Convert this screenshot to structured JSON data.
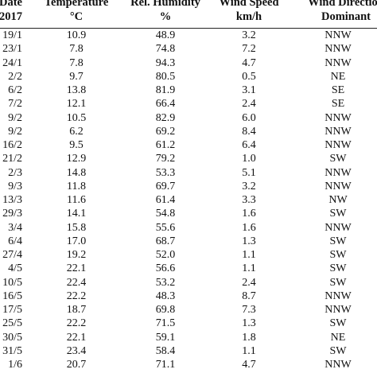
{
  "headers": {
    "date": [
      "Date",
      "2017"
    ],
    "temperature": [
      "Temperature",
      "°C"
    ],
    "humidity": [
      "Rel. Humidity",
      "%"
    ],
    "wind_speed": [
      "Wind Speed",
      "km/h"
    ],
    "wind_direction": [
      "Wind Direction",
      "Dominant"
    ]
  },
  "rows": [
    [
      "19/1",
      "10.9",
      "48.9",
      "3.2",
      "NNW"
    ],
    [
      "23/1",
      "7.8",
      "74.8",
      "7.2",
      "NNW"
    ],
    [
      "24/1",
      "7.8",
      "94.3",
      "4.7",
      "NNW"
    ],
    [
      "2/2",
      "9.7",
      "80.5",
      "0.5",
      "NE"
    ],
    [
      "6/2",
      "13.8",
      "81.9",
      "3.1",
      "SE"
    ],
    [
      "7/2",
      "12.1",
      "66.4",
      "2.4",
      "SE"
    ],
    [
      "9/2",
      "10.5",
      "82.9",
      "6.0",
      "NNW"
    ],
    [
      "9/2",
      "6.2",
      "69.2",
      "8.4",
      "NNW"
    ],
    [
      "16/2",
      "9.5",
      "61.2",
      "6.4",
      "NNW"
    ],
    [
      "21/2",
      "12.9",
      "79.2",
      "1.0",
      "SW"
    ],
    [
      "2/3",
      "14.8",
      "53.3",
      "5.1",
      "NNW"
    ],
    [
      "9/3",
      "11.8",
      "69.7",
      "3.2",
      "NNW"
    ],
    [
      "13/3",
      "11.6",
      "61.4",
      "3.3",
      "NW"
    ],
    [
      "29/3",
      "14.1",
      "54.8",
      "1.6",
      "SW"
    ],
    [
      "3/4",
      "15.8",
      "55.6",
      "1.6",
      "NNW"
    ],
    [
      "6/4",
      "17.0",
      "68.7",
      "1.3",
      "SW"
    ],
    [
      "27/4",
      "19.2",
      "52.0",
      "1.1",
      "SW"
    ],
    [
      "4/5",
      "22.1",
      "56.6",
      "1.1",
      "SW"
    ],
    [
      "10/5",
      "22.4",
      "53.2",
      "2.4",
      "SW"
    ],
    [
      "16/5",
      "22.2",
      "48.3",
      "8.7",
      "NNW"
    ],
    [
      "17/5",
      "18.7",
      "69.8",
      "7.3",
      "NNW"
    ],
    [
      "25/5",
      "22.2",
      "71.5",
      "1.3",
      "SW"
    ],
    [
      "30/5",
      "22.1",
      "59.1",
      "1.8",
      "NE"
    ],
    [
      "31/5",
      "23.4",
      "58.4",
      "1.1",
      "SW"
    ],
    [
      "1/6",
      "20.7",
      "71.1",
      "4.7",
      "NNW"
    ]
  ]
}
